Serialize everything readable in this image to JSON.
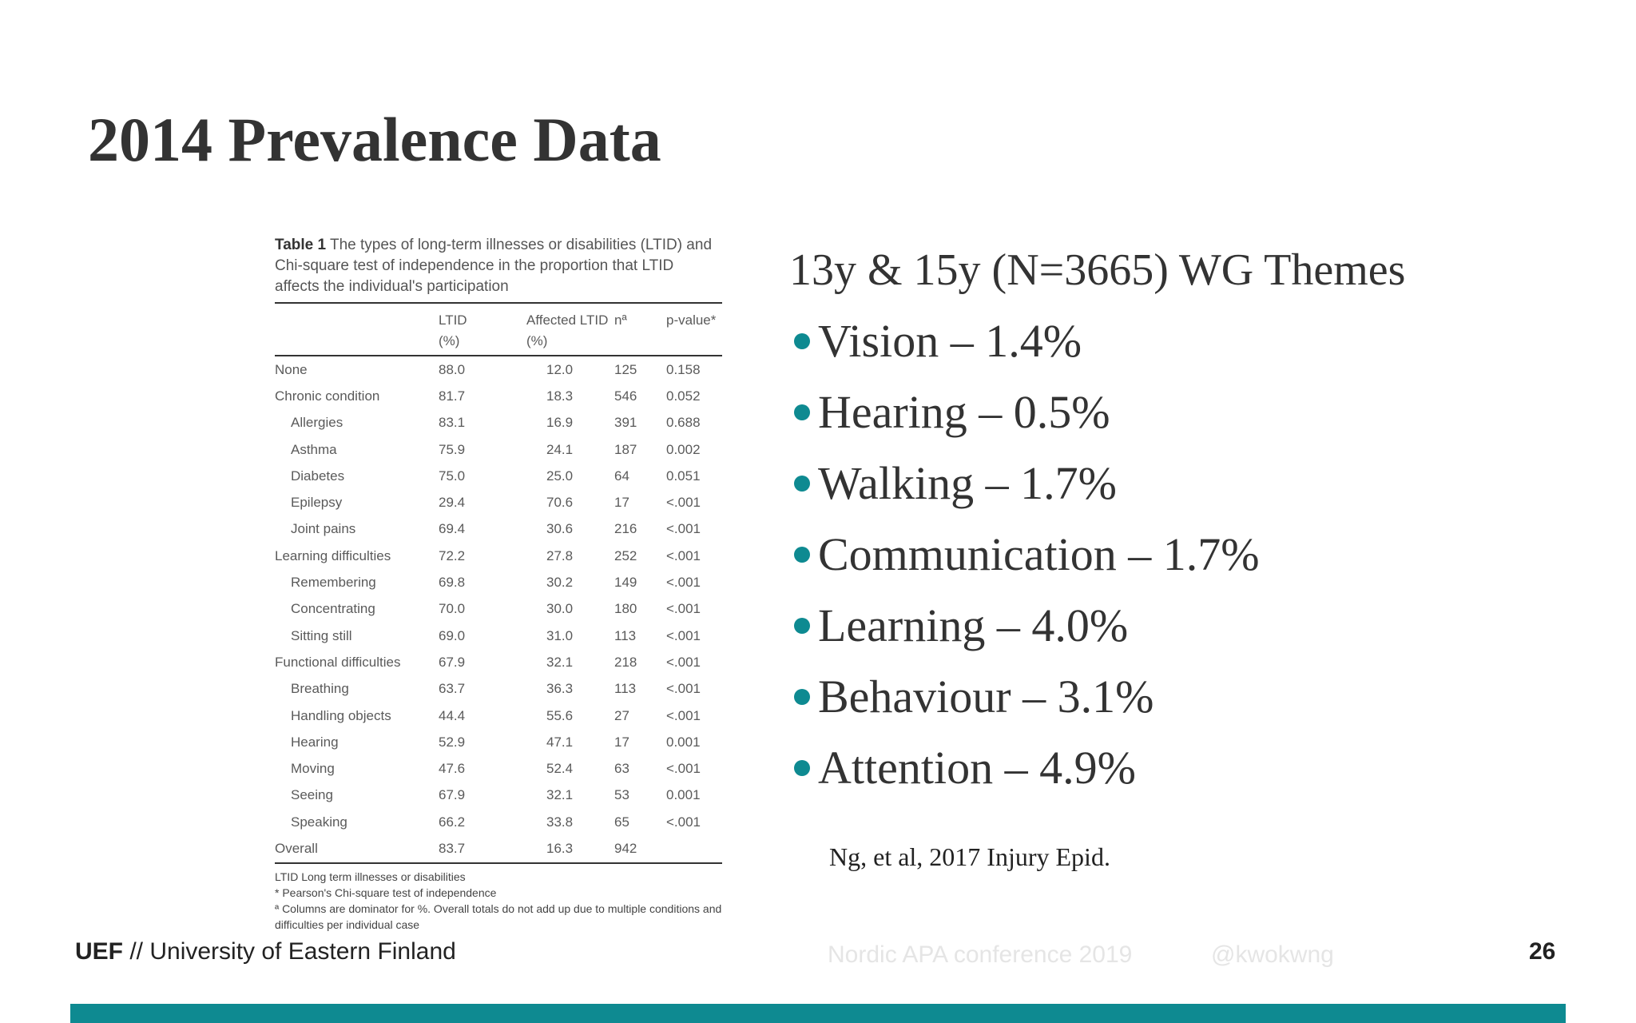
{
  "slide": {
    "title": "2014 Prevalence Data",
    "page_number": "26"
  },
  "table": {
    "caption_label": "Table 1",
    "caption_text": "The types of long-term illnesses or disabilities (LTID) and Chi-square test of independence in the proportion that LTID affects the individual's participation",
    "headers": [
      "",
      "LTID",
      "Affected LTID",
      "nª",
      "p-value*"
    ],
    "headers_sub": [
      "",
      "(%)",
      "(%)",
      "",
      ""
    ],
    "rows": [
      {
        "name": "None",
        "ltid": "88.0",
        "affected": "12.0",
        "n": "125",
        "p": "0.158",
        "sub": false
      },
      {
        "name": "Chronic condition",
        "ltid": "81.7",
        "affected": "18.3",
        "n": "546",
        "p": "0.052",
        "sub": false
      },
      {
        "name": "Allergies",
        "ltid": "83.1",
        "affected": "16.9",
        "n": "391",
        "p": "0.688",
        "sub": true
      },
      {
        "name": "Asthma",
        "ltid": "75.9",
        "affected": "24.1",
        "n": "187",
        "p": "0.002",
        "sub": true
      },
      {
        "name": "Diabetes",
        "ltid": "75.0",
        "affected": "25.0",
        "n": "64",
        "p": "0.051",
        "sub": true
      },
      {
        "name": "Epilepsy",
        "ltid": "29.4",
        "affected": "70.6",
        "n": "17",
        "p": "<.001",
        "sub": true
      },
      {
        "name": "Joint pains",
        "ltid": "69.4",
        "affected": "30.6",
        "n": "216",
        "p": "<.001",
        "sub": true
      },
      {
        "name": "Learning difficulties",
        "ltid": "72.2",
        "affected": "27.8",
        "n": "252",
        "p": "<.001",
        "sub": false
      },
      {
        "name": "Remembering",
        "ltid": "69.8",
        "affected": "30.2",
        "n": "149",
        "p": "<.001",
        "sub": true
      },
      {
        "name": "Concentrating",
        "ltid": "70.0",
        "affected": "30.0",
        "n": "180",
        "p": "<.001",
        "sub": true
      },
      {
        "name": "Sitting still",
        "ltid": "69.0",
        "affected": "31.0",
        "n": "113",
        "p": "<.001",
        "sub": true
      },
      {
        "name": "Functional difficulties",
        "ltid": "67.9",
        "affected": "32.1",
        "n": "218",
        "p": "<.001",
        "sub": false
      },
      {
        "name": "Breathing",
        "ltid": "63.7",
        "affected": "36.3",
        "n": "113",
        "p": "<.001",
        "sub": true
      },
      {
        "name": "Handling objects",
        "ltid": "44.4",
        "affected": "55.6",
        "n": "27",
        "p": "<.001",
        "sub": true
      },
      {
        "name": "Hearing",
        "ltid": "52.9",
        "affected": "47.1",
        "n": "17",
        "p": "0.001",
        "sub": true
      },
      {
        "name": "Moving",
        "ltid": "47.6",
        "affected": "52.4",
        "n": "63",
        "p": "<.001",
        "sub": true
      },
      {
        "name": "Seeing",
        "ltid": "67.9",
        "affected": "32.1",
        "n": "53",
        "p": "0.001",
        "sub": true
      },
      {
        "name": "Speaking",
        "ltid": "66.2",
        "affected": "33.8",
        "n": "65",
        "p": "<.001",
        "sub": true
      },
      {
        "name": "Overall",
        "ltid": "83.7",
        "affected": "16.3",
        "n": "942",
        "p": "",
        "sub": false
      }
    ],
    "notes": [
      "LTID Long term illnesses or disabilities",
      "* Pearson's Chi-square test of independence",
      "ª Columns are dominator for %. Overall totals do not add up due to multiple conditions and difficulties per individual case"
    ]
  },
  "themes": {
    "header": "13y & 15y (N=3665) WG Themes",
    "items": [
      "Vision – 1.4%",
      "Hearing – 0.5%",
      "Walking – 1.7%",
      "Communication – 1.7%",
      "Learning – 4.0%",
      "Behaviour – 3.1%",
      "Attention – 4.9%"
    ],
    "citation": "Ng, et al, 2017 Injury Epid."
  },
  "footer": {
    "org_short": "UEF",
    "org_rest": " // University of Eastern Finland",
    "conference": "Nordic APA conference 2019",
    "handle": "@kwokwng"
  },
  "colors": {
    "accent": "#0e8a91"
  }
}
